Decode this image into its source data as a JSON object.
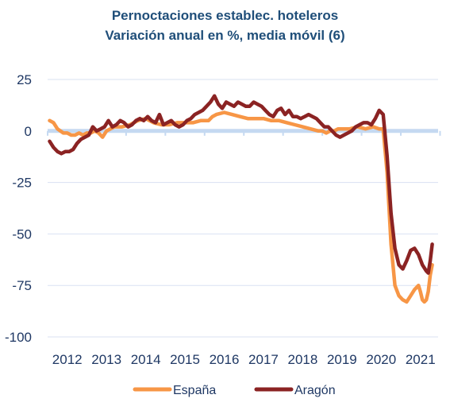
{
  "chart_data": {
    "type": "line",
    "title": "Pernoctaciones establec. hoteleros",
    "subtitle": "Variación anual en %, media móvil (6)",
    "xlabel": "",
    "ylabel": "",
    "ylim": [
      -100,
      25
    ],
    "yticks": [
      25,
      0,
      -25,
      -50,
      -75,
      -100
    ],
    "xlim": [
      2011.5,
      2021.45
    ],
    "xticks": [
      "2012",
      "2013",
      "2014",
      "2015",
      "2016",
      "2017",
      "2018",
      "2019",
      "2020",
      "2021"
    ],
    "grid": true,
    "legend_position": "bottom",
    "series": [
      {
        "name": "España",
        "color": "#F79646",
        "x": [
          2011.55,
          2011.65,
          2011.75,
          2011.9,
          2012.0,
          2012.1,
          2012.2,
          2012.3,
          2012.4,
          2012.5,
          2012.6,
          2012.7,
          2012.8,
          2012.9,
          2013.0,
          2013.2,
          2013.4,
          2013.6,
          2013.8,
          2014.0,
          2014.2,
          2014.4,
          2014.6,
          2014.8,
          2015.0,
          2015.2,
          2015.4,
          2015.6,
          2015.7,
          2015.8,
          2016.0,
          2016.2,
          2016.4,
          2016.6,
          2016.8,
          2017.0,
          2017.2,
          2017.4,
          2017.6,
          2017.8,
          2018.0,
          2018.2,
          2018.4,
          2018.5,
          2018.6,
          2018.7,
          2018.8,
          2018.9,
          2019.0,
          2019.2,
          2019.4,
          2019.6,
          2019.8,
          2019.95,
          2020.05,
          2020.15,
          2020.25,
          2020.35,
          2020.45,
          2020.55,
          2020.65,
          2020.75,
          2020.85,
          2020.95,
          2021.0,
          2021.05,
          2021.1,
          2021.15,
          2021.2,
          2021.25,
          2021.3
        ],
        "values": [
          5,
          4,
          1,
          -1,
          -1,
          -2,
          -2,
          -1,
          -2,
          -1,
          -1,
          0,
          -1,
          -3,
          0,
          2,
          2,
          3,
          5,
          6,
          4,
          3,
          3,
          4,
          4,
          4,
          5,
          5,
          7,
          8,
          9,
          8,
          7,
          6,
          6,
          6,
          5,
          5,
          4,
          3,
          2,
          1,
          0,
          0,
          -1,
          0,
          0,
          1,
          1,
          1,
          2,
          1,
          2,
          1,
          1,
          -20,
          -55,
          -75,
          -80,
          -82,
          -83,
          -80,
          -77,
          -75,
          -78,
          -82,
          -83,
          -82,
          -78,
          -70,
          -65
        ]
      },
      {
        "name": "Aragón",
        "color": "#8B2323",
        "x": [
          2011.55,
          2011.65,
          2011.75,
          2011.85,
          2011.95,
          2012.05,
          2012.15,
          2012.25,
          2012.35,
          2012.45,
          2012.55,
          2012.65,
          2012.75,
          2012.85,
          2012.95,
          2013.05,
          2013.15,
          2013.25,
          2013.35,
          2013.45,
          2013.55,
          2013.65,
          2013.75,
          2013.85,
          2013.95,
          2014.05,
          2014.15,
          2014.25,
          2014.35,
          2014.45,
          2014.55,
          2014.65,
          2014.75,
          2014.85,
          2014.95,
          2015.05,
          2015.15,
          2015.25,
          2015.35,
          2015.45,
          2015.55,
          2015.65,
          2015.75,
          2015.85,
          2015.95,
          2016.05,
          2016.15,
          2016.25,
          2016.35,
          2016.45,
          2016.55,
          2016.65,
          2016.75,
          2016.85,
          2016.95,
          2017.05,
          2017.15,
          2017.25,
          2017.35,
          2017.45,
          2017.55,
          2017.65,
          2017.75,
          2017.85,
          2017.95,
          2018.05,
          2018.15,
          2018.25,
          2018.35,
          2018.45,
          2018.55,
          2018.65,
          2018.75,
          2018.85,
          2018.95,
          2019.05,
          2019.15,
          2019.25,
          2019.35,
          2019.45,
          2019.55,
          2019.65,
          2019.75,
          2019.85,
          2019.95,
          2020.05,
          2020.15,
          2020.25,
          2020.35,
          2020.45,
          2020.55,
          2020.65,
          2020.75,
          2020.85,
          2020.95,
          2021.05,
          2021.15,
          2021.2,
          2021.25,
          2021.3
        ],
        "values": [
          -5,
          -8,
          -10,
          -11,
          -10,
          -10,
          -9,
          -6,
          -4,
          -3,
          -2,
          2,
          0,
          1,
          2,
          5,
          2,
          3,
          5,
          4,
          2,
          3,
          5,
          6,
          5,
          7,
          5,
          4,
          8,
          3,
          4,
          5,
          3,
          2,
          3,
          5,
          6,
          8,
          9,
          10,
          12,
          14,
          17,
          13,
          11,
          14,
          13,
          12,
          14,
          13,
          12,
          12,
          14,
          13,
          12,
          10,
          8,
          7,
          10,
          11,
          8,
          10,
          7,
          7,
          6,
          7,
          8,
          7,
          6,
          4,
          2,
          2,
          0,
          -2,
          -3,
          -2,
          -1,
          0,
          2,
          3,
          4,
          4,
          3,
          6,
          10,
          8,
          -12,
          -40,
          -57,
          -65,
          -67,
          -63,
          -58,
          -57,
          -60,
          -65,
          -68,
          -69,
          -63,
          -55
        ]
      }
    ]
  }
}
